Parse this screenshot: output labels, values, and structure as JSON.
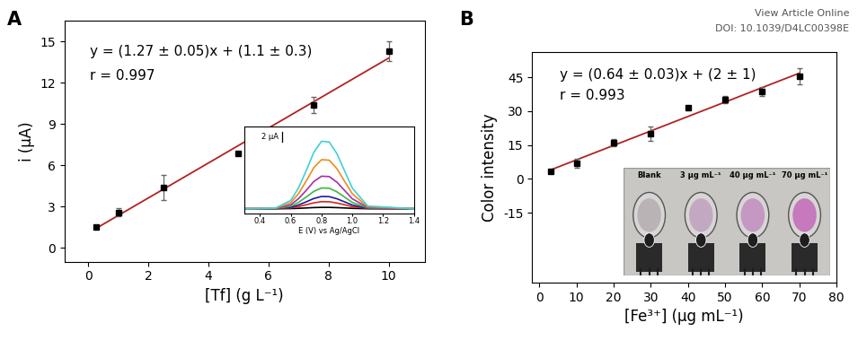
{
  "header_text": [
    "View Article Online",
    "DOI: 10.1039/D4LC00398E"
  ],
  "chart_data": [
    {
      "type": "scatter",
      "panel_label": "A",
      "x_label": "[Tf] (g L⁻¹)",
      "y_label": "i (µA)",
      "x": [
        0.25,
        1,
        2.5,
        5,
        7.5,
        10
      ],
      "values": [
        1.5,
        2.6,
        4.4,
        6.9,
        10.4,
        14.3
      ],
      "errors": [
        0.1,
        0.3,
        0.9,
        0.1,
        0.6,
        0.7
      ],
      "color": "#000000",
      "marker": "square",
      "fit": {
        "slope": 1.27,
        "intercept": 1.1,
        "color": "#b22222"
      },
      "annotations": [
        "y = (1.27 ± 0.05)x + (1.1 ± 0.3)",
        "r = 0.997"
      ],
      "xlim": [
        -0.8,
        11.2
      ],
      "xticks": [
        0,
        2,
        4,
        6,
        8,
        10
      ],
      "ylim": [
        -1,
        16.5
      ],
      "yticks": [
        0,
        3,
        6,
        9,
        12,
        15
      ],
      "inset": {
        "type": "line",
        "x_label": "E (V) vs Ag/AgCl",
        "x": [
          0.3,
          0.5,
          0.6,
          0.65,
          0.7,
          0.75,
          0.8,
          0.85,
          0.9,
          0.95,
          1.0,
          1.1,
          1.4
        ],
        "xlim": [
          0.3,
          1.4
        ],
        "xticks": [
          0.4,
          0.6,
          0.8,
          1.0,
          1.2,
          1.4
        ],
        "ylim": [
          -1,
          17
        ],
        "tick_labels": "x",
        "scale_bar": {
          "value": 2,
          "label": "2 µA"
        },
        "series": [
          {
            "color": "#000000",
            "values": [
              0,
              0,
              0.04,
              0.09,
              0.17,
              0.25,
              0.29,
              0.29,
              0.24,
              0.17,
              0.09,
              0.01,
              0
            ]
          },
          {
            "color": "#e0201b",
            "values": [
              0,
              0.02,
              0.18,
              0.45,
              0.83,
              1.23,
              1.47,
              1.46,
              1.2,
              0.83,
              0.45,
              0.06,
              0
            ]
          },
          {
            "color": "#1c1c9c",
            "values": [
              0,
              0.03,
              0.31,
              0.78,
              1.43,
              2.13,
              2.55,
              2.52,
              2.08,
              1.43,
              0.78,
              0.1,
              0
            ]
          },
          {
            "color": "#3cb83c",
            "values": [
              0,
              0.04,
              0.53,
              1.32,
              2.42,
              3.61,
              4.31,
              4.27,
              3.52,
              2.42,
              1.32,
              0.18,
              0
            ]
          },
          {
            "color": "#a62ea6",
            "values": [
              0,
              0.07,
              0.83,
              2.07,
              3.8,
              5.66,
              6.76,
              6.69,
              5.52,
              3.8,
              2.07,
              0.28,
              0
            ]
          },
          {
            "color": "#f08a1a",
            "values": [
              0,
              0.1,
              1.25,
              3.12,
              5.72,
              8.53,
              10.19,
              10.09,
              8.32,
              5.72,
              3.12,
              0.42,
              0
            ]
          },
          {
            "color": "#40d0d8",
            "values": [
              0,
              0.14,
              1.72,
              4.29,
              7.87,
              11.73,
              14.01,
              13.87,
              11.44,
              7.87,
              4.29,
              0.57,
              0
            ]
          }
        ]
      }
    },
    {
      "type": "scatter",
      "panel_label": "B",
      "x_label": "[Fe³⁺] (µg mL⁻¹)",
      "y_label": "Color intensity",
      "x": [
        3,
        10,
        20,
        30,
        40,
        50,
        60,
        70
      ],
      "values": [
        3.3,
        7,
        16,
        20,
        31.5,
        35,
        38.5,
        45.5
      ],
      "errors": [
        0.3,
        2,
        1.5,
        3,
        0.3,
        1.5,
        2,
        3.5
      ],
      "color": "#000000",
      "marker": "square",
      "fit": {
        "slope": 0.64,
        "intercept": 2,
        "color": "#b22222"
      },
      "annotations": [
        "y = (0.64 ± 0.03)x + (2 ± 1)",
        "r = 0.993"
      ],
      "xlim": [
        -2,
        80
      ],
      "xticks": [
        0,
        10,
        20,
        30,
        40,
        50,
        60,
        70,
        80
      ],
      "ylim": [
        -46,
        56
      ],
      "yticks": [
        -15,
        0,
        15,
        30,
        45
      ],
      "inset": {
        "type": "photo",
        "labels": [
          "Blank",
          "3 µg mL⁻¹",
          "40 µg mL⁻¹",
          "70 µg mL⁻¹"
        ],
        "colors": [
          "#b9b3b6",
          "#c2a9c1",
          "#c598c4",
          "#c679bd"
        ]
      }
    }
  ]
}
